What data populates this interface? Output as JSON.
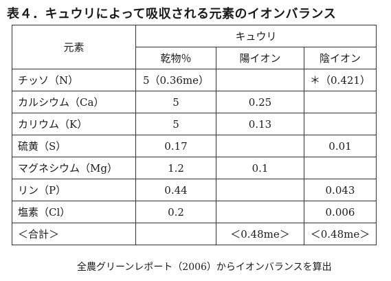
{
  "title": "表４．キュウリによって吸収される元素のイオンバランス",
  "table": {
    "corner_label": "元素",
    "group_label": "キュウリ",
    "columns": [
      "乾物％",
      "陽イオン",
      "陰イオン"
    ],
    "rows": [
      {
        "element": "チッソ（N）",
        "dry": "5（0.36me）",
        "cation": "",
        "anion": "＊（0.421）"
      },
      {
        "element": "カルシウム（Ca）",
        "dry": "5",
        "cation": "0.25",
        "anion": ""
      },
      {
        "element": "カリウム（K）",
        "dry": "5",
        "cation": "0.13",
        "anion": ""
      },
      {
        "element": "硫黄（S）",
        "dry": "0.17",
        "cation": "",
        "anion": "0.01"
      },
      {
        "element": "マグネシウム（Mg）",
        "dry": "1.2",
        "cation": "0.1",
        "anion": ""
      },
      {
        "element": "リン（P）",
        "dry": "0.44",
        "cation": "",
        "anion": "0.043"
      },
      {
        "element": "塩素（Cl）",
        "dry": "0.2",
        "cation": "",
        "anion": "0.006"
      }
    ],
    "total": {
      "label": "＜合計＞",
      "dry": "",
      "cation": "＜0.48me＞",
      "anion": "＜0.48me＞"
    }
  },
  "source": "全農グリーンレポート（2006）からイオンバランスを算出"
}
